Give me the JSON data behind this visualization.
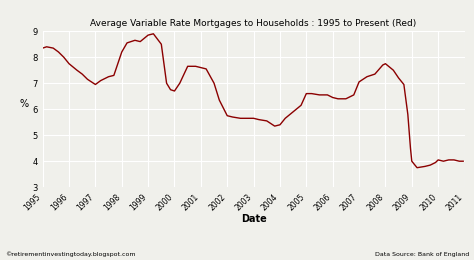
{
  "title": "Average Variable Rate Mortgages to Households : 1995 to Present (Red)",
  "xlabel": "Date",
  "ylabel": "%",
  "ylim": [
    3,
    9
  ],
  "yticks": [
    3,
    4,
    5,
    6,
    7,
    8,
    9
  ],
  "line_color": "#8B0000",
  "background_color": "#f0f0eb",
  "grid_color": "#ffffff",
  "footer_left": "©retirementinvestingtoday.blogspot.com",
  "footer_right": "Data Source: Bank of England",
  "x_years": [
    1995,
    1996,
    1997,
    1998,
    1999,
    2000,
    2001,
    2002,
    2003,
    2004,
    2005,
    2006,
    2007,
    2008,
    2009,
    2010,
    2011
  ],
  "data": [
    [
      1995.0,
      8.35
    ],
    [
      1995.15,
      8.4
    ],
    [
      1995.4,
      8.35
    ],
    [
      1995.6,
      8.2
    ],
    [
      1995.8,
      8.0
    ],
    [
      1996.0,
      7.75
    ],
    [
      1996.3,
      7.5
    ],
    [
      1996.5,
      7.35
    ],
    [
      1996.7,
      7.15
    ],
    [
      1997.0,
      6.95
    ],
    [
      1997.2,
      7.1
    ],
    [
      1997.5,
      7.25
    ],
    [
      1997.7,
      7.3
    ],
    [
      1998.0,
      8.2
    ],
    [
      1998.2,
      8.55
    ],
    [
      1998.5,
      8.65
    ],
    [
      1998.7,
      8.6
    ],
    [
      1999.0,
      8.85
    ],
    [
      1999.2,
      8.9
    ],
    [
      1999.5,
      8.5
    ],
    [
      1999.7,
      7.0
    ],
    [
      1999.85,
      6.75
    ],
    [
      2000.0,
      6.7
    ],
    [
      2000.2,
      7.0
    ],
    [
      2000.5,
      7.65
    ],
    [
      2000.8,
      7.65
    ],
    [
      2001.0,
      7.6
    ],
    [
      2001.2,
      7.55
    ],
    [
      2001.5,
      7.0
    ],
    [
      2001.7,
      6.35
    ],
    [
      2001.9,
      5.95
    ],
    [
      2002.0,
      5.75
    ],
    [
      2002.2,
      5.7
    ],
    [
      2002.5,
      5.65
    ],
    [
      2002.8,
      5.65
    ],
    [
      2003.0,
      5.65
    ],
    [
      2003.2,
      5.6
    ],
    [
      2003.5,
      5.55
    ],
    [
      2003.8,
      5.35
    ],
    [
      2004.0,
      5.4
    ],
    [
      2004.2,
      5.65
    ],
    [
      2004.5,
      5.9
    ],
    [
      2004.8,
      6.15
    ],
    [
      2005.0,
      6.6
    ],
    [
      2005.2,
      6.6
    ],
    [
      2005.5,
      6.55
    ],
    [
      2005.8,
      6.55
    ],
    [
      2006.0,
      6.45
    ],
    [
      2006.2,
      6.4
    ],
    [
      2006.5,
      6.4
    ],
    [
      2006.8,
      6.55
    ],
    [
      2007.0,
      7.05
    ],
    [
      2007.3,
      7.25
    ],
    [
      2007.6,
      7.35
    ],
    [
      2007.9,
      7.7
    ],
    [
      2008.0,
      7.75
    ],
    [
      2008.3,
      7.5
    ],
    [
      2008.5,
      7.2
    ],
    [
      2008.7,
      6.95
    ],
    [
      2008.85,
      5.8
    ],
    [
      2008.95,
      4.5
    ],
    [
      2009.0,
      4.0
    ],
    [
      2009.2,
      3.75
    ],
    [
      2009.5,
      3.8
    ],
    [
      2009.7,
      3.85
    ],
    [
      2009.9,
      3.95
    ],
    [
      2010.0,
      4.05
    ],
    [
      2010.2,
      4.0
    ],
    [
      2010.4,
      4.05
    ],
    [
      2010.6,
      4.05
    ],
    [
      2010.8,
      4.0
    ],
    [
      2010.95,
      4.0
    ]
  ]
}
